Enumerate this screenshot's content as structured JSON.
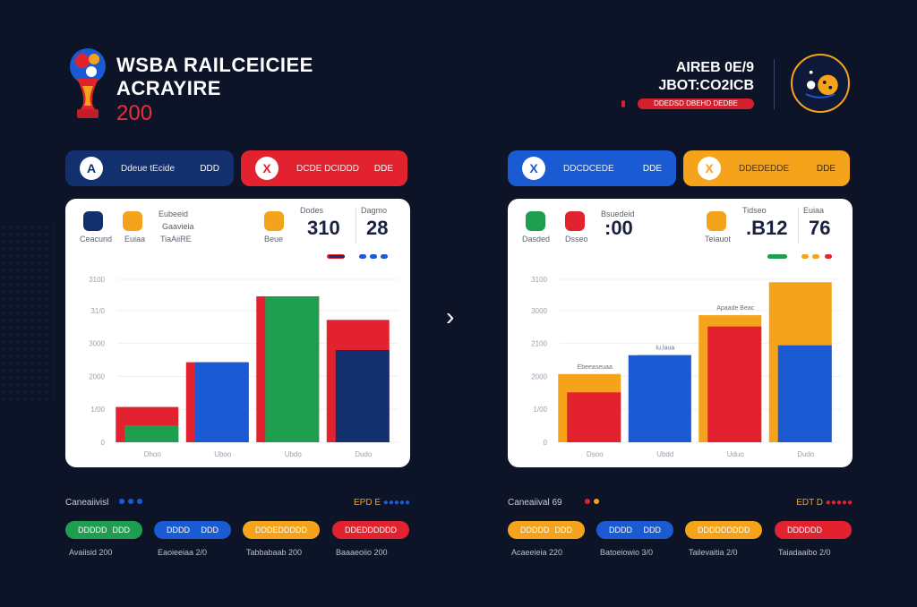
{
  "header": {
    "title_line1": "WSBA RAILCEICIEE",
    "title_line2": "ACRAYIRE",
    "year": "200",
    "right_line1": "AIREB 0E/9",
    "right_line2": "JBOT:CO2ICB",
    "bar_text": "DDEDSD DBEHD DEDBE"
  },
  "colors": {
    "navy": "#12306e",
    "blue": "#1a5bd3",
    "red": "#e2232f",
    "green": "#1f9e4f",
    "orange": "#f5a31a",
    "background": "#0d1428"
  },
  "left_panel": {
    "pill_a": {
      "icon": "A",
      "label": "Ddeue tEcide",
      "value": "DDD"
    },
    "pill_b": {
      "icon": "X",
      "label": "DCDE DCIDDD",
      "value": "DDE"
    },
    "legend": [
      {
        "label": "Ceacund",
        "color": "#12306e"
      },
      {
        "label": "Euiaa",
        "color": "#f5a31a"
      }
    ],
    "mid_caption": "Eubeeid",
    "mid_line1": "Gaavieia",
    "mid_line2": "TiaAiiRE",
    "metric1_caption": "Dodes",
    "metric1_sub": "Beue",
    "metric1_value": "310",
    "metric2_caption": "Dagmo",
    "metric2_value": "28"
  },
  "right_panel": {
    "pill_a": {
      "icon": "X",
      "label": "DDCDCEDE",
      "value": "DDE"
    },
    "pill_b": {
      "icon": "X",
      "label": "DDEDEDDE",
      "value": "DDE"
    },
    "legend": [
      {
        "label": "Dasded",
        "color": "#1f9e4f"
      },
      {
        "label": "Dsseo",
        "color": "#e2232f"
      }
    ],
    "mid_caption": "Bsuedeid",
    "mid_value": ":00",
    "metric1_caption": "Tidseo",
    "metric1_sub": "Teiauot",
    "metric1_value": ".B12",
    "metric2_caption": "Euiaa",
    "metric2_value": "76"
  },
  "chart_data": [
    {
      "type": "bar",
      "categories": [
        "Dhoo",
        "Uboo",
        "Ubdo",
        "Dudo"
      ],
      "yticks": [
        "0",
        "1/00",
        "2000",
        "3000",
        "31/0",
        "3100"
      ],
      "ylim": [
        0,
        3500
      ],
      "series": [
        {
          "values": [
            750,
            1700,
            3100,
            2600
          ],
          "color_back": [
            "#e2232f",
            "#e2232f",
            "#e2232f",
            "#e2232f"
          ],
          "color_front": [
            "#1f9e4f",
            "#1a5bd3",
            "#1f9e4f",
            "#12306e"
          ]
        }
      ],
      "front_values": [
        550,
        1700,
        3100,
        2150
      ],
      "annotations": []
    },
    {
      "type": "bar",
      "categories": [
        "Dsoo",
        "Ubdd",
        "Uduo",
        "Dudo"
      ],
      "yticks": [
        "0",
        "1/00",
        "2000",
        "2100",
        "3000",
        "3100"
      ],
      "ylim": [
        0,
        3500
      ],
      "series": [
        {
          "values": [
            1450,
            1850,
            2700,
            3400
          ],
          "color_back": [
            "#f5a31a",
            "#1a5bd3",
            "#f5a31a",
            "#f5a31a"
          ],
          "color_front": [
            "#e2232f",
            "#1a5bd3",
            "#e2232f",
            "#1a5bd3"
          ]
        }
      ],
      "front_values": [
        1250,
        1850,
        2650,
        2250
      ],
      "annotations": [
        "Ebeeaseuaa",
        "Iu,laua",
        "Apaade Beac"
      ]
    }
  ],
  "bottom_left": {
    "label": "Caneaiivisl",
    "right_text": "EPD E",
    "pills": [
      {
        "left": "DDDDD",
        "right": "DDD",
        "color": "#1f9e4f"
      },
      {
        "left": "DDDD",
        "right": "DDD",
        "color": "#1a5bd3"
      },
      {
        "left": "DDDEDDD",
        "right": "DD",
        "color": "#f5a31a"
      },
      {
        "left": "DDEDDD",
        "right": "DDD",
        "color": "#e2232f"
      }
    ],
    "captions": [
      {
        "left": "Avaiisid",
        "right": "200"
      },
      {
        "left": "Eaoieeiaa",
        "right": "2/0"
      },
      {
        "left": "Tabbabaab",
        "right": "200"
      },
      {
        "left": "Baaaeoiio",
        "right": "200"
      }
    ]
  },
  "bottom_right": {
    "label": "Caneaiival 69",
    "right_text": "EDT D",
    "pills": [
      {
        "left": "DDDDD",
        "right": "DDD",
        "color": "#f5a31a"
      },
      {
        "left": "DDDD",
        "right": "DDD",
        "color": "#1a5bd3"
      },
      {
        "left": "DDDDDD",
        "right": "DDD",
        "color": "#f5a31a"
      },
      {
        "left": "DDDDDD",
        "right": "",
        "color": "#e2232f"
      }
    ],
    "captions": [
      {
        "left": "Acaeeieia",
        "right": "220"
      },
      {
        "left": "Batoeiowio",
        "right": "3/0"
      },
      {
        "left": "Tailevaitia",
        "right": "2/0"
      },
      {
        "left": "Taiadaaibo",
        "right": "2/0"
      }
    ]
  }
}
